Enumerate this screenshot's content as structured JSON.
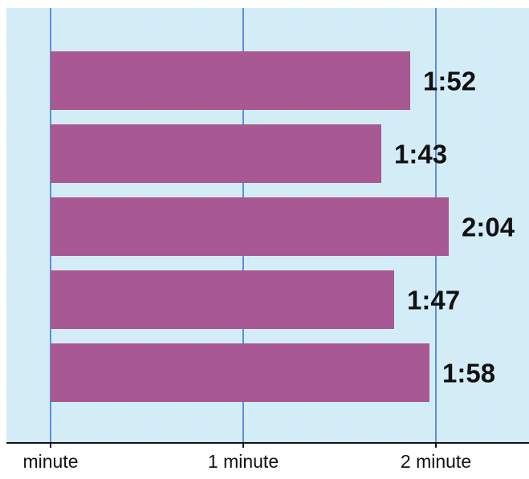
{
  "chart_data": {
    "type": "bar",
    "orientation": "horizontal",
    "values": [
      112,
      103,
      124,
      107,
      118
    ],
    "value_unit": "seconds",
    "data_labels": [
      "1:52",
      "1:43",
      "2:04",
      "1:47",
      "1:58"
    ],
    "xlim": [
      0,
      150
    ],
    "x_ticks": [
      {
        "value": 0,
        "label": "minute"
      },
      {
        "value": 60,
        "label": "1 minute"
      },
      {
        "value": 120,
        "label": "2 minute"
      }
    ],
    "grid": true,
    "title": "",
    "xlabel": "",
    "ylabel": ""
  },
  "colors": {
    "bar": "#a85893",
    "plot_background": "#d3edf8",
    "gridline": "#5a8fe0",
    "minor_gridline": "#e6e6e6",
    "axis": "#111111"
  }
}
